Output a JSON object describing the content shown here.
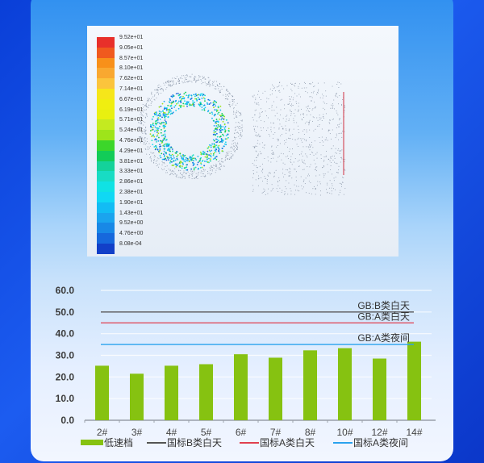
{
  "colorbar": {
    "labels": [
      "9.52e+01",
      "9.05e+01",
      "8.57e+01",
      "8.10e+01",
      "7.62e+01",
      "7.14e+01",
      "6.67e+01",
      "6.19e+01",
      "5.71e+01",
      "5.24e+01",
      "4.76e+01",
      "4.29e+01",
      "3.81e+01",
      "3.33e+01",
      "2.86e+01",
      "2.38e+01",
      "1.90e+01",
      "1.43e+01",
      "9.52e+00",
      "4.76e+00",
      "8.08e-04"
    ],
    "colors": [
      "#e8302a",
      "#f05a1e",
      "#f8901a",
      "#f9a830",
      "#fbc43c",
      "#f6e61a",
      "#f0ee10",
      "#e8f010",
      "#c4ea20",
      "#9ee41a",
      "#3cd62a",
      "#12cc58",
      "#14d29a",
      "#18dcc4",
      "#10e2e4",
      "#10d8f4",
      "#12bcf4",
      "#1aa4ee",
      "#1888e6",
      "#1668dc",
      "#1240c8"
    ]
  },
  "chart_data": {
    "type": "bar",
    "categories": [
      "2#",
      "3#",
      "4#",
      "5#",
      "6#",
      "7#",
      "8#",
      "10#",
      "12#",
      "14#"
    ],
    "series": [
      {
        "name": "低速档",
        "values": [
          25.2,
          21.5,
          25.2,
          25.9,
          30.5,
          28.9,
          32.3,
          33.3,
          28.5,
          36.3
        ],
        "color": "#86c211"
      }
    ],
    "reference_lines": [
      {
        "name": "国标B类白天",
        "label": "GB:B类白天",
        "value": 50,
        "color": "#555555"
      },
      {
        "name": "国标A类白天",
        "label": "GB:A类白天",
        "value": 45,
        "color": "#e04050"
      },
      {
        "name": "国标A类夜间",
        "label": "GB:A类夜间",
        "value": 35,
        "color": "#2aa2ee"
      }
    ],
    "yticks": [
      "0.0",
      "10.0",
      "20.0",
      "30.0",
      "40.0",
      "50.0",
      "60.0"
    ],
    "ylim": [
      0,
      60
    ],
    "grid": true,
    "legend": "bottom"
  }
}
